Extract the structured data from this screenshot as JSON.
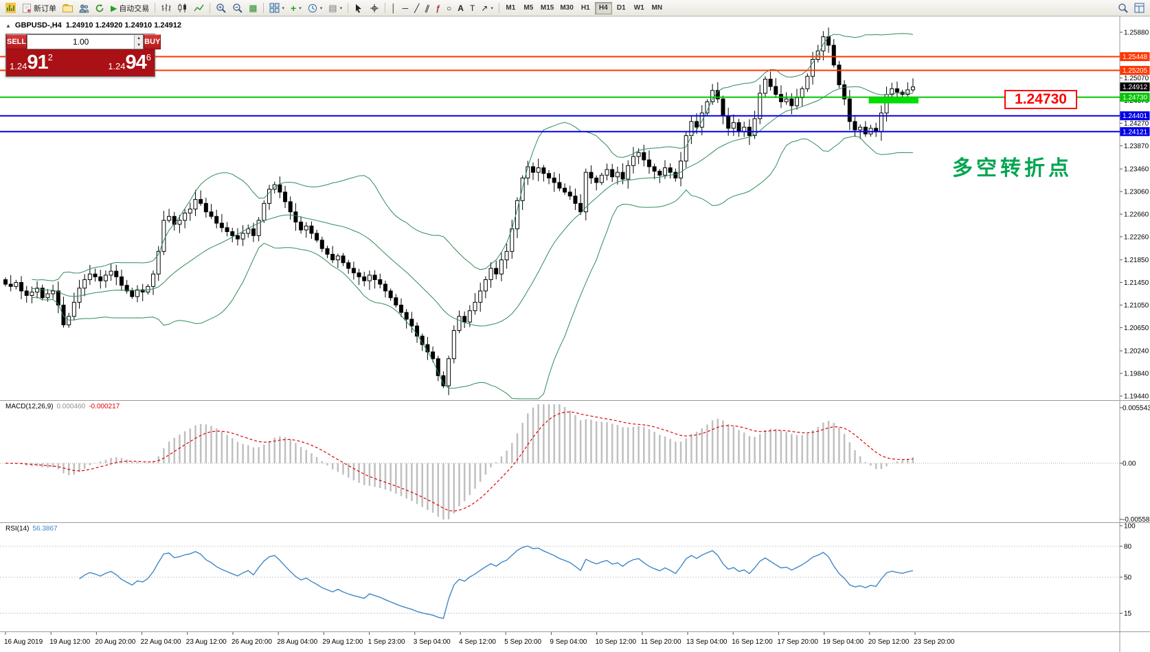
{
  "toolbar": {
    "new_order_label": "新订单",
    "autotrade_label": "自动交易",
    "timeframes": [
      "M1",
      "M5",
      "M15",
      "M30",
      "H1",
      "H4",
      "D1",
      "W1",
      "MN"
    ],
    "active_timeframe": "H4"
  },
  "trade_panel": {
    "sell_label": "SELL",
    "buy_label": "BUY",
    "volume": "1.00",
    "sell_price_small": "1.24",
    "sell_price_big": "91",
    "sell_price_sup": "2",
    "buy_price_small": "1.24",
    "buy_price_big": "94",
    "buy_price_sup": "6"
  },
  "chart": {
    "symbol_header": "GBPUSD-,H4",
    "ohlc": "1.24910 1.24920 1.24910 1.24912"
  },
  "chart_data": {
    "type": "candlestick",
    "symbol": "GBPUSD-",
    "timeframe": "H4",
    "price_axis": {
      "min": 1.1944,
      "max": 1.2588,
      "plain_labels": [
        "1.25880",
        "1.25070",
        "1.24670",
        "1.24270",
        "1.23870",
        "1.23460",
        "1.23060",
        "1.22660",
        "1.22260",
        "1.21850",
        "1.21450",
        "1.21050",
        "1.20650",
        "1.20240",
        "1.19840",
        "1.19440"
      ]
    },
    "time_axis_labels": [
      "16 Aug 2019",
      "19 Aug 12:00",
      "20 Aug 20:00",
      "22 Aug 04:00",
      "23 Aug 12:00",
      "26 Aug 20:00",
      "28 Aug 04:00",
      "29 Aug 12:00",
      "1 Sep 23:00",
      "3 Sep 04:00",
      "4 Sep 12:00",
      "5 Sep 20:00",
      "9 Sep 04:00",
      "10 Sep 12:00",
      "11 Sep 20:00",
      "13 Sep 04:00",
      "16 Sep 12:00",
      "17 Sep 20:00",
      "19 Sep 04:00",
      "20 Sep 12:00",
      "23 Sep 20:00"
    ],
    "closes": [
      1.2142,
      1.2138,
      1.2145,
      1.213,
      1.2122,
      1.2128,
      1.2135,
      1.2118,
      1.2125,
      1.213,
      1.2105,
      1.207,
      1.2085,
      1.211,
      1.2135,
      1.215,
      1.216,
      1.2155,
      1.2148,
      1.2158,
      1.2165,
      1.2155,
      1.214,
      1.213,
      1.212,
      1.2132,
      1.2128,
      1.2138,
      1.216,
      1.22,
      1.2255,
      1.2262,
      1.2248,
      1.2255,
      1.2268,
      1.2275,
      1.2292,
      1.2285,
      1.227,
      1.2262,
      1.225,
      1.2242,
      1.2235,
      1.2228,
      1.2222,
      1.2232,
      1.224,
      1.2228,
      1.2255,
      1.2285,
      1.231,
      1.2318,
      1.2305,
      1.2288,
      1.227,
      1.2252,
      1.2238,
      1.2245,
      1.2232,
      1.222,
      1.2205,
      1.2195,
      1.2185,
      1.2192,
      1.218,
      1.217,
      1.2162,
      1.2155,
      1.2148,
      1.2158,
      1.215,
      1.2142,
      1.213,
      1.2118,
      1.2105,
      1.2092,
      1.208,
      1.2068,
      1.205,
      1.2035,
      1.2022,
      1.201,
      1.198,
      1.1962,
      1.201,
      1.206,
      1.2085,
      1.2075,
      1.2095,
      1.211,
      1.213,
      1.215,
      1.217,
      1.216,
      1.2185,
      1.22,
      1.224,
      1.229,
      1.233,
      1.235,
      1.234,
      1.2348,
      1.2338,
      1.233,
      1.2322,
      1.2312,
      1.2305,
      1.2298,
      1.2285,
      1.227,
      1.234,
      1.233,
      1.2322,
      1.2335,
      1.2345,
      1.2332,
      1.234,
      1.2328,
      1.2352,
      1.2368,
      1.2375,
      1.2362,
      1.235,
      1.2342,
      1.2335,
      1.2348,
      1.234,
      1.233,
      1.236,
      1.2405,
      1.243,
      1.242,
      1.2445,
      1.2465,
      1.2485,
      1.247,
      1.244,
      1.2418,
      1.2428,
      1.2412,
      1.242,
      1.2405,
      1.2435,
      1.248,
      1.2505,
      1.2492,
      1.2478,
      1.2465,
      1.247,
      1.2458,
      1.2472,
      1.2488,
      1.251,
      1.254,
      1.2555,
      1.258,
      1.2565,
      1.253,
      1.2495,
      1.247,
      1.243,
      1.2415,
      1.242,
      1.2408,
      1.2418,
      1.2412,
      1.2445,
      1.2478,
      1.2488,
      1.2482,
      1.2478,
      1.2486,
      1.24912
    ],
    "hlines": [
      {
        "price": 1.25448,
        "label": "1.25448",
        "color": "#ff3600"
      },
      {
        "price": 1.25205,
        "label": "1.25205",
        "color": "#ff3600"
      },
      {
        "price": 1.2473,
        "label": "1.24730",
        "color": "#00c400"
      },
      {
        "price": 1.24401,
        "label": "1.24401",
        "color": "#0000e6"
      },
      {
        "price": 1.24121,
        "label": "1.24121",
        "color": "#0000e6"
      }
    ],
    "current_price": {
      "value": 1.24912,
      "label": "1.24912",
      "badge_color": "#000000"
    },
    "indicators": {
      "bollinger": {
        "period": 20,
        "deviation": 2,
        "color": "#2e8b57"
      },
      "macd": {
        "label": "MACD(12,26,9)",
        "value": "0.000460",
        "signal_value": "-0.000217",
        "scale_labels": [
          "0.005543",
          "0.00",
          "-0.005583"
        ],
        "histogram_color": "#bfbfbf",
        "signal_color": "#e00000"
      },
      "rsi": {
        "label": "RSI(14)",
        "value": "56.3867",
        "levels": [
          "100",
          "80",
          "50",
          "15"
        ],
        "color": "#3e86c6"
      }
    },
    "annotations": {
      "support_box_label": "1.24730",
      "turning_point_text": "多空转折点",
      "highlight": {
        "bar_start": 164,
        "bar_end": 172,
        "color": "#00dd00"
      }
    }
  }
}
